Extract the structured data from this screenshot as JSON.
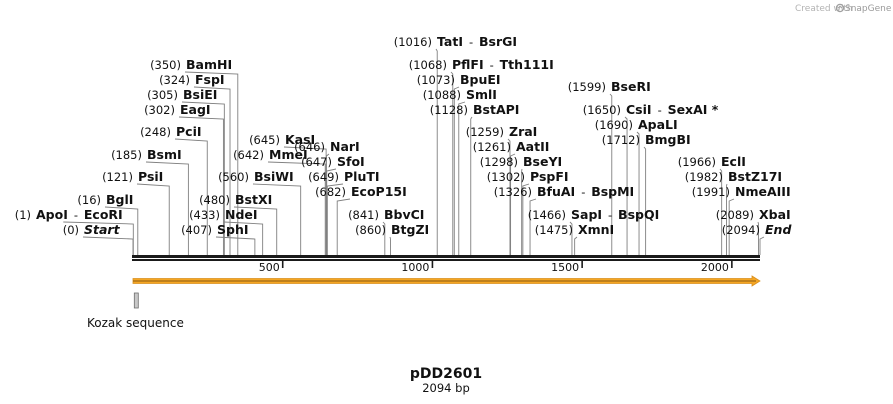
{
  "credit": {
    "prefix": "Created with",
    "brand": "SnapGene"
  },
  "plasmid": {
    "name": "pDD2601",
    "length_label": "2094 bp",
    "length": 2094
  },
  "ticks": [
    {
      "value": 500,
      "label": "500"
    },
    {
      "value": 1000,
      "label": "1000"
    },
    {
      "value": 1500,
      "label": "1500"
    },
    {
      "value": 2000,
      "label": "2000"
    }
  ],
  "features": [
    {
      "name": "orf-arrow",
      "label": "",
      "start": 1,
      "end": 2094,
      "color": "#f5a623"
    },
    {
      "name": "kozak",
      "label": "Kozak sequence",
      "start": 2,
      "end": 12,
      "color": "#9e9e9e"
    }
  ],
  "colors": {
    "backbone": "#1a1a1a",
    "leader": "#808080",
    "orf": "#f5a623",
    "orf_outline": "#d9901f"
  },
  "sites": [
    {
      "id": "start",
      "pos": "(0)",
      "name": "Start",
      "at": 0,
      "italic": true
    },
    {
      "id": "apoi",
      "pos": "(1)",
      "name": "ApoI",
      "pair": "EcoRI",
      "at": 1
    },
    {
      "id": "bgli",
      "pos": "(16)",
      "name": "BglI",
      "at": 16
    },
    {
      "id": "psii",
      "pos": "(121)",
      "name": "PsiI",
      "at": 121
    },
    {
      "id": "bsmi",
      "pos": "(185)",
      "name": "BsmI",
      "at": 185
    },
    {
      "id": "pcii",
      "pos": "(248)",
      "name": "PciI",
      "at": 248
    },
    {
      "id": "eagi",
      "pos": "(302)",
      "name": "EagI",
      "at": 302
    },
    {
      "id": "bsiei",
      "pos": "(305)",
      "name": "BsiEI",
      "at": 305
    },
    {
      "id": "fspi",
      "pos": "(324)",
      "name": "FspI",
      "at": 324
    },
    {
      "id": "bamhi",
      "pos": "(350)",
      "name": "BamHI",
      "at": 350
    },
    {
      "id": "sphi",
      "pos": "(407)",
      "name": "SphI",
      "at": 407
    },
    {
      "id": "ndei",
      "pos": "(433)",
      "name": "NdeI",
      "at": 433
    },
    {
      "id": "bstxi",
      "pos": "(480)",
      "name": "BstXI",
      "at": 480
    },
    {
      "id": "bsiwi",
      "pos": "(560)",
      "name": "BsiWI",
      "at": 560
    },
    {
      "id": "mmei",
      "pos": "(642)",
      "name": "MmeI",
      "at": 642
    },
    {
      "id": "kasi",
      "pos": "(645)",
      "name": "KasI",
      "at": 645
    },
    {
      "id": "nari",
      "pos": "(646)",
      "name": "NarI",
      "at": 646
    },
    {
      "id": "sfoi",
      "pos": "(647)",
      "name": "SfoI",
      "at": 647
    },
    {
      "id": "pluti",
      "pos": "(649)",
      "name": "PluTI",
      "at": 649
    },
    {
      "id": "ecop15i",
      "pos": "(682)",
      "name": "EcoP15I",
      "at": 682
    },
    {
      "id": "bbvci",
      "pos": "(841)",
      "name": "BbvCI",
      "at": 841
    },
    {
      "id": "btgzi",
      "pos": "(860)",
      "name": "BtgZI",
      "at": 860
    },
    {
      "id": "tati",
      "pos": "(1016)",
      "name": "TatI",
      "pair": "BsrGI",
      "at": 1016
    },
    {
      "id": "pflfi",
      "pos": "(1068)",
      "name": "PflFI",
      "pair": "Tth111I",
      "at": 1068
    },
    {
      "id": "bpuei",
      "pos": "(1073)",
      "name": "BpuEI",
      "at": 1073
    },
    {
      "id": "smli",
      "pos": "(1088)",
      "name": "SmlI",
      "at": 1088
    },
    {
      "id": "bstapi",
      "pos": "(1128)",
      "name": "BstAPI",
      "at": 1128
    },
    {
      "id": "zrai",
      "pos": "(1259)",
      "name": "ZraI",
      "at": 1259
    },
    {
      "id": "aatii",
      "pos": "(1261)",
      "name": "AatII",
      "at": 1261
    },
    {
      "id": "bseyi",
      "pos": "(1298)",
      "name": "BseYI",
      "at": 1298
    },
    {
      "id": "pspfi",
      "pos": "(1302)",
      "name": "PspFI",
      "at": 1302
    },
    {
      "id": "bfuai",
      "pos": "(1326)",
      "name": "BfuAI",
      "pair": "BspMI",
      "at": 1326
    },
    {
      "id": "sapi",
      "pos": "(1466)",
      "name": "SapI",
      "pair": "BspQI",
      "at": 1466
    },
    {
      "id": "xmni",
      "pos": "(1475)",
      "name": "XmnI",
      "at": 1475
    },
    {
      "id": "bseri",
      "pos": "(1599)",
      "name": "BseRI",
      "at": 1599
    },
    {
      "id": "csii",
      "pos": "(1650)",
      "name": "CsiI",
      "pair": "SexAI *",
      "at": 1650
    },
    {
      "id": "apali",
      "pos": "(1690)",
      "name": "ApaLI",
      "at": 1690
    },
    {
      "id": "bmgbi",
      "pos": "(1712)",
      "name": "BmgBI",
      "at": 1712
    },
    {
      "id": "ecli",
      "pos": "(1966)",
      "name": "EclI",
      "at": 1966
    },
    {
      "id": "bstz17i",
      "pos": "(1982)",
      "name": "BstZ17I",
      "at": 1982
    },
    {
      "id": "nmeaiii",
      "pos": "(1991)",
      "name": "NmeAIII",
      "at": 1991
    },
    {
      "id": "xbai",
      "pos": "(2089)",
      "name": "XbaI",
      "at": 2089
    },
    {
      "id": "end",
      "pos": "(2094)",
      "name": "End",
      "at": 2094,
      "italic": true
    }
  ]
}
